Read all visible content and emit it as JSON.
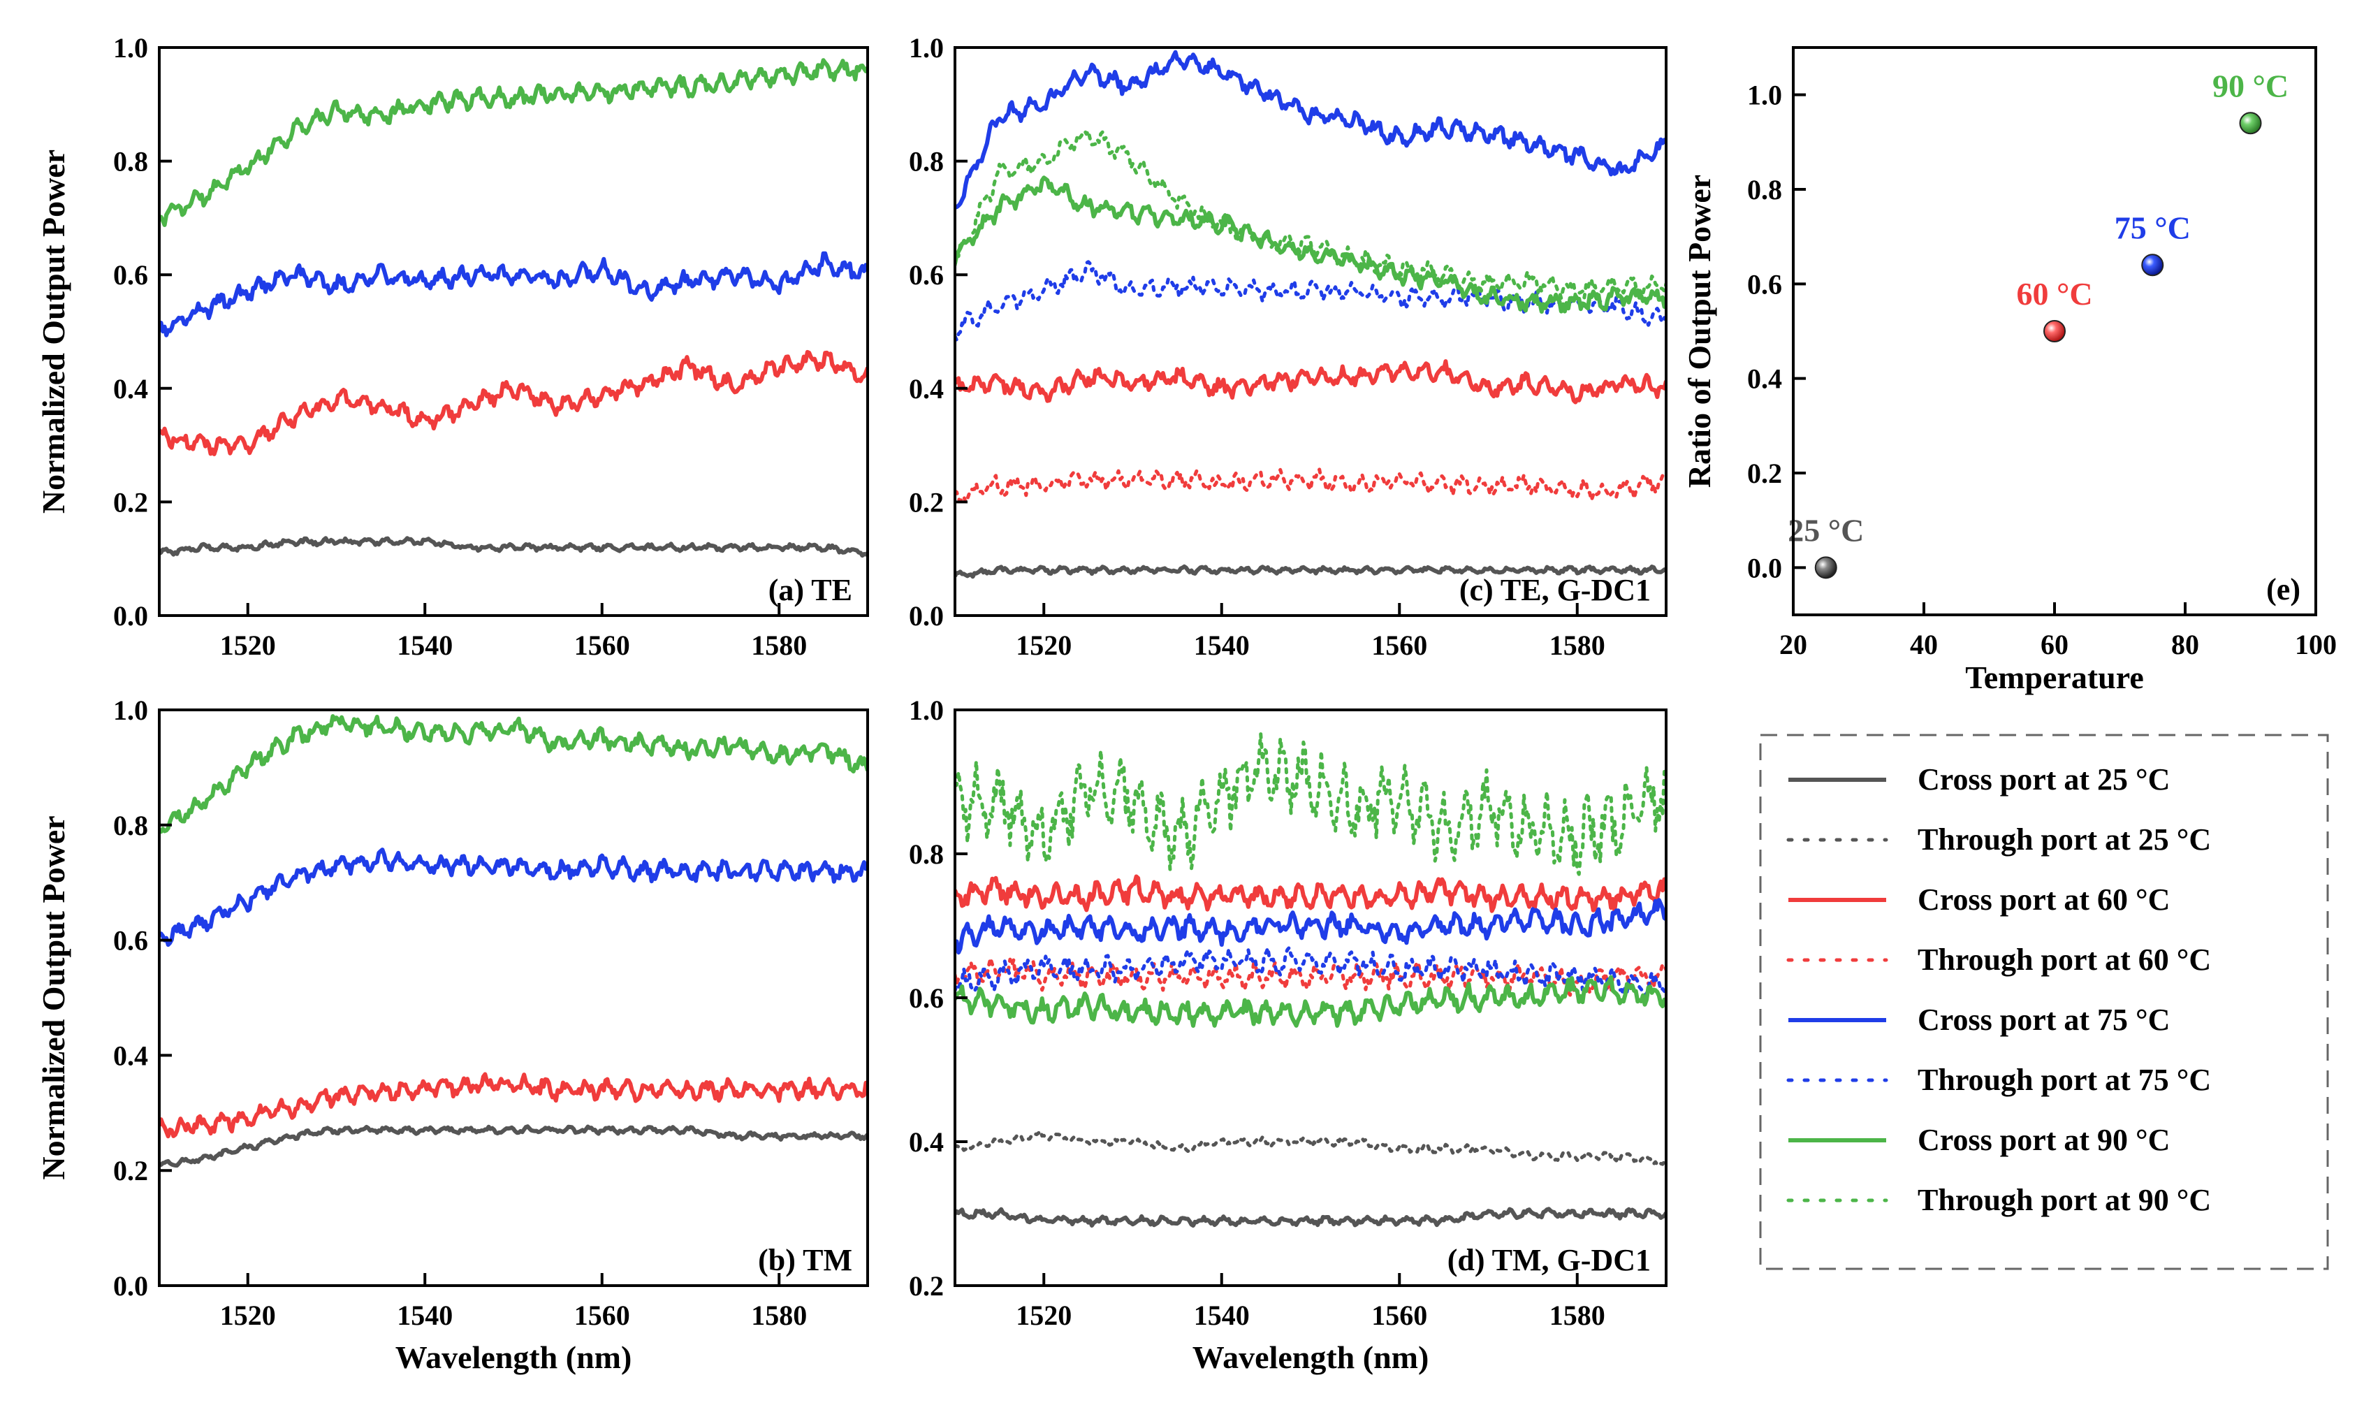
{
  "colors": {
    "t25": "#555555",
    "t60": "#f03c3c",
    "t75": "#1f3de8",
    "t90": "#4cb548"
  },
  "legend": {
    "items": [
      {
        "label": "Cross port at 25 °C",
        "temp": "t25",
        "style": "solid"
      },
      {
        "label": "Through port at 25 °C",
        "temp": "t25",
        "style": "dotted"
      },
      {
        "label": "Cross port at 60 °C",
        "temp": "t60",
        "style": "solid"
      },
      {
        "label": "Through port at 60 °C",
        "temp": "t60",
        "style": "dotted"
      },
      {
        "label": "Cross port at 75 °C",
        "temp": "t75",
        "style": "solid"
      },
      {
        "label": "Through port at 75 °C",
        "temp": "t75",
        "style": "dotted"
      },
      {
        "label": "Cross port at 90 °C",
        "temp": "t90",
        "style": "solid"
      },
      {
        "label": "Through port at 90 °C",
        "temp": "t90",
        "style": "dotted"
      }
    ]
  },
  "chart_data": [
    {
      "id": "a",
      "type": "line",
      "tag": "(a) TE",
      "xlabel": "",
      "ylabel": "Normalized Output Power",
      "xlim": [
        1510,
        1590
      ],
      "ylim": [
        0.0,
        1.0
      ],
      "xticks": [
        1520,
        1540,
        1560,
        1580
      ],
      "xtick_labels": [
        "1520",
        "1540",
        "1560",
        "1580"
      ],
      "yticks": [
        0.0,
        0.2,
        0.4,
        0.6,
        0.8,
        1.0
      ],
      "ytick_labels": [
        "0.0",
        "0.2",
        "0.4",
        "0.6",
        "0.8",
        "1.0"
      ],
      "x": [
        1510,
        1515,
        1520,
        1525,
        1530,
        1535,
        1540,
        1545,
        1550,
        1555,
        1560,
        1565,
        1570,
        1575,
        1580,
        1585,
        1590
      ],
      "series": [
        {
          "name": "Cross port at 25 °C",
          "temp": "t25",
          "style": "solid",
          "values": [
            0.11,
            0.12,
            0.12,
            0.13,
            0.13,
            0.13,
            0.13,
            0.12,
            0.12,
            0.12,
            0.12,
            0.12,
            0.12,
            0.12,
            0.12,
            0.12,
            0.11
          ]
        },
        {
          "name": "Cross port at 60 °C",
          "temp": "t60",
          "style": "solid",
          "values": [
            0.32,
            0.3,
            0.3,
            0.35,
            0.38,
            0.37,
            0.34,
            0.37,
            0.4,
            0.37,
            0.39,
            0.41,
            0.44,
            0.4,
            0.44,
            0.45,
            0.42
          ]
        },
        {
          "name": "Cross port at 75 °C",
          "temp": "t75",
          "style": "solid",
          "values": [
            0.5,
            0.54,
            0.57,
            0.6,
            0.58,
            0.6,
            0.59,
            0.6,
            0.6,
            0.59,
            0.61,
            0.57,
            0.59,
            0.6,
            0.58,
            0.62,
            0.6
          ]
        },
        {
          "name": "Cross port at 90 °C",
          "temp": "t90",
          "style": "solid",
          "values": [
            0.7,
            0.74,
            0.79,
            0.85,
            0.89,
            0.88,
            0.9,
            0.91,
            0.91,
            0.92,
            0.92,
            0.93,
            0.93,
            0.94,
            0.95,
            0.96,
            0.96
          ]
        }
      ]
    },
    {
      "id": "b",
      "type": "line",
      "tag": "(b) TM",
      "xlabel": "Wavelength (nm)",
      "ylabel": "Normalized Output Power",
      "xlim": [
        1510,
        1590
      ],
      "ylim": [
        0.0,
        1.0
      ],
      "xticks": [
        1520,
        1540,
        1560,
        1580
      ],
      "xtick_labels": [
        "1520",
        "1540",
        "1560",
        "1580"
      ],
      "yticks": [
        0.0,
        0.2,
        0.4,
        0.6,
        0.8,
        1.0
      ],
      "ytick_labels": [
        "0.0",
        "0.2",
        "0.4",
        "0.6",
        "0.8",
        "1.0"
      ],
      "x": [
        1510,
        1515,
        1520,
        1525,
        1530,
        1535,
        1540,
        1545,
        1550,
        1555,
        1560,
        1565,
        1570,
        1575,
        1580,
        1585,
        1590
      ],
      "series": [
        {
          "name": "Cross port at 25 °C",
          "temp": "t25",
          "style": "solid",
          "values": [
            0.21,
            0.22,
            0.24,
            0.26,
            0.27,
            0.27,
            0.27,
            0.27,
            0.27,
            0.27,
            0.27,
            0.27,
            0.27,
            0.26,
            0.26,
            0.26,
            0.26
          ]
        },
        {
          "name": "Cross port at 60 °C",
          "temp": "t60",
          "style": "solid",
          "values": [
            0.27,
            0.28,
            0.29,
            0.31,
            0.33,
            0.34,
            0.34,
            0.35,
            0.35,
            0.34,
            0.34,
            0.34,
            0.34,
            0.34,
            0.34,
            0.34,
            0.34
          ]
        },
        {
          "name": "Cross port at 75 °C",
          "temp": "t75",
          "style": "solid",
          "values": [
            0.6,
            0.63,
            0.67,
            0.71,
            0.73,
            0.74,
            0.73,
            0.73,
            0.73,
            0.72,
            0.73,
            0.72,
            0.72,
            0.72,
            0.72,
            0.72,
            0.72
          ]
        },
        {
          "name": "Cross port at 90 °C",
          "temp": "t90",
          "style": "solid",
          "values": [
            0.79,
            0.84,
            0.9,
            0.95,
            0.98,
            0.97,
            0.96,
            0.96,
            0.97,
            0.94,
            0.95,
            0.94,
            0.93,
            0.94,
            0.92,
            0.93,
            0.9
          ]
        }
      ]
    },
    {
      "id": "c",
      "type": "line",
      "tag": "(c) TE, G-DC1",
      "xlabel": "",
      "ylabel": "",
      "xlim": [
        1510,
        1590
      ],
      "ylim": [
        0.0,
        1.0
      ],
      "xticks": [
        1520,
        1540,
        1560,
        1580
      ],
      "xtick_labels": [
        "1520",
        "1540",
        "1560",
        "1580"
      ],
      "yticks": [
        0.0,
        0.2,
        0.4,
        0.6,
        0.8,
        1.0
      ],
      "ytick_labels": [
        "0.0",
        "0.2",
        "0.4",
        "0.6",
        "0.8",
        "1.0"
      ],
      "x": [
        1510,
        1515,
        1520,
        1525,
        1530,
        1535,
        1540,
        1545,
        1550,
        1555,
        1560,
        1565,
        1570,
        1575,
        1580,
        1585,
        1590
      ],
      "series": [
        {
          "name": "Cross port at 25 °C",
          "temp": "t25",
          "style": "solid",
          "values": [
            0.07,
            0.08,
            0.08,
            0.08,
            0.08,
            0.08,
            0.08,
            0.08,
            0.08,
            0.08,
            0.08,
            0.08,
            0.08,
            0.08,
            0.08,
            0.08,
            0.08
          ]
        },
        {
          "name": "Cross port at 60 °C",
          "temp": "t60",
          "style": "solid",
          "values": [
            0.4,
            0.41,
            0.39,
            0.42,
            0.41,
            0.42,
            0.4,
            0.41,
            0.42,
            0.42,
            0.43,
            0.43,
            0.4,
            0.41,
            0.39,
            0.41,
            0.4
          ]
        },
        {
          "name": "Through port at 60 °C",
          "temp": "t60",
          "style": "dotted",
          "values": [
            0.21,
            0.23,
            0.23,
            0.24,
            0.24,
            0.24,
            0.23,
            0.24,
            0.24,
            0.23,
            0.24,
            0.23,
            0.23,
            0.23,
            0.22,
            0.22,
            0.24
          ]
        },
        {
          "name": "Cross port at 75 °C",
          "temp": "t75",
          "style": "solid",
          "values": [
            0.72,
            0.88,
            0.9,
            0.96,
            0.93,
            0.98,
            0.96,
            0.92,
            0.88,
            0.87,
            0.84,
            0.86,
            0.85,
            0.83,
            0.81,
            0.78,
            0.83
          ]
        },
        {
          "name": "Through port at 75 °C",
          "temp": "t75",
          "style": "dotted",
          "values": [
            0.5,
            0.55,
            0.57,
            0.61,
            0.57,
            0.58,
            0.58,
            0.57,
            0.57,
            0.57,
            0.56,
            0.56,
            0.56,
            0.55,
            0.55,
            0.54,
            0.52
          ]
        },
        {
          "name": "Cross port at 90 °C",
          "temp": "t90",
          "style": "solid",
          "values": [
            0.63,
            0.72,
            0.76,
            0.72,
            0.71,
            0.7,
            0.69,
            0.66,
            0.64,
            0.62,
            0.6,
            0.59,
            0.56,
            0.55,
            0.55,
            0.56,
            0.56
          ]
        },
        {
          "name": "Through port at 90 °C",
          "temp": "t90",
          "style": "dotted",
          "values": [
            0.62,
            0.78,
            0.8,
            0.85,
            0.8,
            0.73,
            0.69,
            0.66,
            0.65,
            0.63,
            0.61,
            0.6,
            0.58,
            0.59,
            0.57,
            0.58,
            0.58
          ]
        }
      ]
    },
    {
      "id": "d",
      "type": "line",
      "tag": "(d) TM, G-DC1",
      "xlabel": "Wavelength (nm)",
      "ylabel": "",
      "xlim": [
        1510,
        1590
      ],
      "ylim": [
        0.2,
        1.0
      ],
      "xticks": [
        1520,
        1540,
        1560,
        1580
      ],
      "xtick_labels": [
        "1520",
        "1540",
        "1560",
        "1580"
      ],
      "yticks": [
        0.2,
        0.4,
        0.6,
        0.8,
        1.0
      ],
      "ytick_labels": [
        "0.2",
        "0.4",
        "0.6",
        "0.8",
        "1.0"
      ],
      "x": [
        1510,
        1515,
        1520,
        1525,
        1530,
        1535,
        1540,
        1545,
        1550,
        1555,
        1560,
        1565,
        1570,
        1575,
        1580,
        1585,
        1590
      ],
      "series": [
        {
          "name": "Cross port at 25 °C",
          "temp": "t25",
          "style": "solid",
          "values": [
            0.3,
            0.3,
            0.29,
            0.29,
            0.29,
            0.29,
            0.29,
            0.29,
            0.29,
            0.29,
            0.29,
            0.29,
            0.3,
            0.3,
            0.3,
            0.3,
            0.3
          ]
        },
        {
          "name": "Through port at 25 °C",
          "temp": "t25",
          "style": "dotted",
          "values": [
            0.39,
            0.4,
            0.41,
            0.4,
            0.4,
            0.39,
            0.4,
            0.4,
            0.4,
            0.4,
            0.39,
            0.39,
            0.39,
            0.38,
            0.38,
            0.38,
            0.37
          ]
        },
        {
          "name": "Cross port at 60 °C",
          "temp": "t60",
          "style": "solid",
          "values": [
            0.74,
            0.75,
            0.74,
            0.74,
            0.75,
            0.74,
            0.74,
            0.74,
            0.74,
            0.74,
            0.74,
            0.75,
            0.74,
            0.74,
            0.74,
            0.74,
            0.75
          ]
        },
        {
          "name": "Through port at 60 °C",
          "temp": "t60",
          "style": "dotted",
          "values": [
            0.63,
            0.64,
            0.63,
            0.63,
            0.63,
            0.63,
            0.63,
            0.63,
            0.63,
            0.63,
            0.63,
            0.63,
            0.63,
            0.63,
            0.62,
            0.63,
            0.63
          ]
        },
        {
          "name": "Cross port at 75 °C",
          "temp": "t75",
          "style": "solid",
          "values": [
            0.68,
            0.7,
            0.69,
            0.7,
            0.69,
            0.7,
            0.69,
            0.7,
            0.7,
            0.7,
            0.69,
            0.7,
            0.7,
            0.71,
            0.7,
            0.71,
            0.72
          ]
        },
        {
          "name": "Through port at 75 °C",
          "temp": "t75",
          "style": "dotted",
          "values": [
            0.62,
            0.63,
            0.64,
            0.64,
            0.64,
            0.65,
            0.65,
            0.65,
            0.65,
            0.65,
            0.64,
            0.64,
            0.64,
            0.63,
            0.63,
            0.62,
            0.62
          ]
        },
        {
          "name": "Cross port at 90 °C",
          "temp": "t90",
          "style": "solid",
          "values": [
            0.6,
            0.59,
            0.58,
            0.59,
            0.58,
            0.58,
            0.58,
            0.58,
            0.58,
            0.58,
            0.59,
            0.6,
            0.6,
            0.6,
            0.61,
            0.61,
            0.6
          ]
        },
        {
          "name": "Through port at 90 °C",
          "temp": "t90",
          "style": "dotted",
          "values": [
            0.87,
            0.88,
            0.82,
            0.9,
            0.88,
            0.82,
            0.88,
            0.92,
            0.9,
            0.86,
            0.88,
            0.83,
            0.86,
            0.84,
            0.82,
            0.85,
            0.88
          ]
        }
      ]
    },
    {
      "id": "e",
      "type": "scatter",
      "tag": "(e)",
      "xlabel": "Temperature",
      "ylabel": "Ratio of Output Power",
      "xlim": [
        20,
        100
      ],
      "ylim": [
        -0.1,
        1.1
      ],
      "xticks": [
        20,
        40,
        60,
        80,
        100
      ],
      "xtick_labels": [
        "20",
        "40",
        "60",
        "80",
        "100"
      ],
      "yticks": [
        0.0,
        0.2,
        0.4,
        0.6,
        0.8,
        1.0
      ],
      "ytick_labels": [
        "0.0",
        "0.2",
        "0.4",
        "0.6",
        "0.8",
        "1.0"
      ],
      "points": [
        {
          "x": 25,
          "y": 0.0,
          "label": "25 °C",
          "temp": "t25"
        },
        {
          "x": 60,
          "y": 0.5,
          "label": "60 °C",
          "temp": "t60"
        },
        {
          "x": 75,
          "y": 0.64,
          "label": "75 °C",
          "temp": "t75"
        },
        {
          "x": 90,
          "y": 0.94,
          "label": "90 °C",
          "temp": "t90"
        }
      ]
    }
  ]
}
